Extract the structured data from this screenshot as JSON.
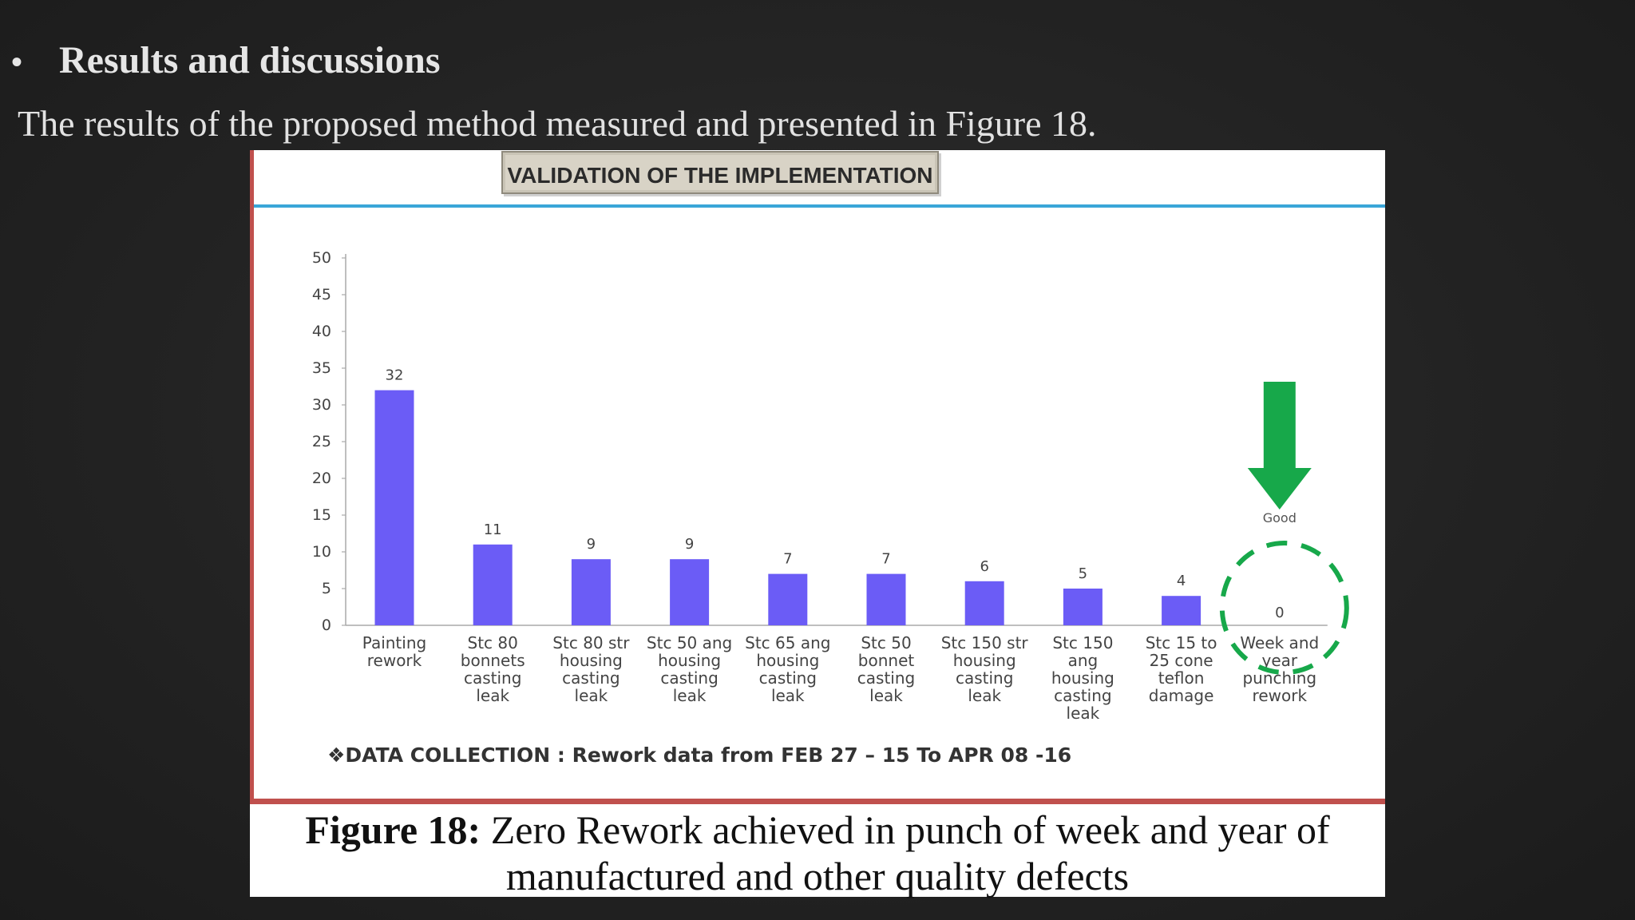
{
  "slide": {
    "bullet": "•",
    "heading": "Results and discussions",
    "subtext": "The results of the proposed method measured and presented in Figure 18."
  },
  "figure": {
    "banner": "VALIDATION OF THE IMPLEMENTATION",
    "caption_label": "Figure 18:",
    "caption_text": "Zero Rework achieved in punch of week and year of manufactured and other quality defects",
    "note_marker": "❖",
    "note": "DATA COLLECTION : Rework data from FEB 27 – 15 To APR 08 -16",
    "good_label": "Good",
    "colors": {
      "bar": "#6b5cf6",
      "arrow": "#17a84a",
      "circle": "#17a84a",
      "top_rule": "#3aa6d8",
      "frame": "#c0504d"
    }
  },
  "chart_data": {
    "type": "bar",
    "title": "VALIDATION OF THE IMPLEMENTATION",
    "xlabel": "",
    "ylabel": "",
    "ylim": [
      0,
      50
    ],
    "yticks": [
      0,
      5,
      10,
      15,
      20,
      25,
      30,
      35,
      40,
      45,
      50
    ],
    "grid": false,
    "categories": [
      [
        "Painting",
        "rework"
      ],
      [
        "Stc 80",
        "bonnets",
        "casting",
        "leak"
      ],
      [
        "Stc 80 str",
        "housing",
        "casting",
        "leak"
      ],
      [
        "Stc 50 ang",
        "housing",
        "casting",
        "leak"
      ],
      [
        "Stc 65 ang",
        "housing",
        "casting",
        "leak"
      ],
      [
        "Stc 50",
        "bonnet",
        "casting",
        "leak"
      ],
      [
        "Stc 150 str",
        "housing",
        "casting",
        "leak"
      ],
      [
        "Stc 150",
        "ang",
        "housing",
        "casting",
        "leak"
      ],
      [
        "Stc 15 to",
        "25 cone",
        "teflon",
        "damage"
      ],
      [
        "Week and",
        "year",
        "punching",
        "rework"
      ]
    ],
    "values": [
      32,
      11,
      9,
      9,
      7,
      7,
      6,
      5,
      4,
      0
    ]
  }
}
